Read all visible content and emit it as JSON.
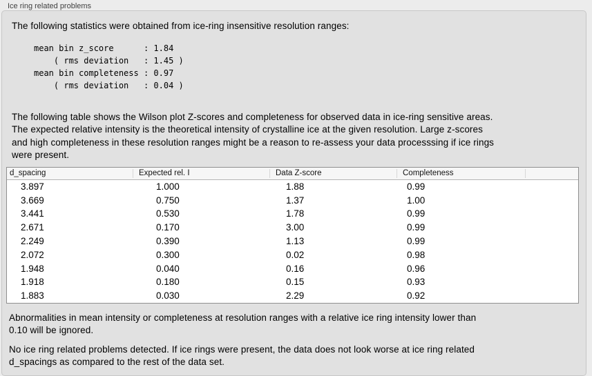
{
  "panel": {
    "title": "Ice ring related problems"
  },
  "colors": {
    "window_bg": "#ececec",
    "box_bg": "#e1e1e1",
    "box_border": "#c6c6c6",
    "title_text": "#3f3f3f",
    "table_border": "#8e8e8e",
    "header_bg": "#f6f6f6",
    "header_line": "#b4b4b4"
  },
  "intro": "The following statistics were obtained from ice-ring insensitive resolution ranges:",
  "stats_lines": [
    "mean bin z_score      : 1.84",
    "    ( rms deviation   : 1.45 )",
    "mean bin completeness : 0.97",
    "    ( rms deviation   : 0.04 )"
  ],
  "description_lines": [
    "The following table shows the Wilson plot Z-scores and completeness for observed data in ice-ring sensitive areas.",
    "The expected relative intensity is the theoretical intensity of crystalline ice at the given resolution. Large z-scores",
    "and high completeness in these resolution ranges might be a reason to re-assess your data processsing if ice rings",
    "were present."
  ],
  "table": {
    "columns": [
      {
        "key": "d_spacing",
        "label": "d_spacing"
      },
      {
        "key": "expected_rel_i",
        "label": "Expected rel. I"
      },
      {
        "key": "data_z_score",
        "label": "Data Z-score"
      },
      {
        "key": "completeness",
        "label": "Completeness"
      },
      {
        "key": "spacer",
        "label": ""
      }
    ],
    "rows": [
      [
        "3.897",
        "1.000",
        "1.88",
        "0.99"
      ],
      [
        "3.669",
        "0.750",
        "1.37",
        "1.00"
      ],
      [
        "3.441",
        "0.530",
        "1.78",
        "0.99"
      ],
      [
        "2.671",
        "0.170",
        "3.00",
        "0.99"
      ],
      [
        "2.249",
        "0.390",
        "1.13",
        "0.99"
      ],
      [
        "2.072",
        "0.300",
        "0.02",
        "0.98"
      ],
      [
        "1.948",
        "0.040",
        "0.16",
        "0.96"
      ],
      [
        "1.918",
        "0.180",
        "0.15",
        "0.93"
      ],
      [
        "1.883",
        "0.030",
        "2.29",
        "0.92"
      ]
    ]
  },
  "note_lines": [
    "Abnormalities in mean intensity or completeness at resolution ranges with a relative ice ring intensity lower than",
    "0.10 will be ignored."
  ],
  "conclusion_lines": [
    "No ice ring related problems detected. If ice rings were present, the data does not look worse at ice ring related",
    "d_spacings as compared to the rest of the data set."
  ]
}
